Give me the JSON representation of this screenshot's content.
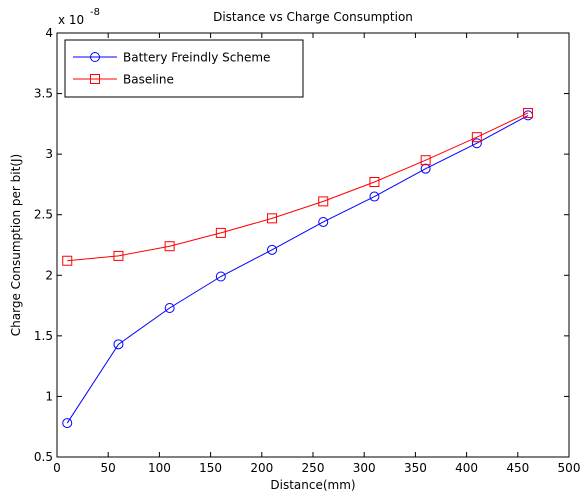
{
  "chart_data": {
    "type": "line",
    "title": "Distance vs Charge Consumption",
    "xlabel": "Distance(mm)",
    "ylabel": "Charge Consumption per bit(J)",
    "y_multiplier_label": "x 10",
    "y_multiplier_exponent": "-8",
    "xlim": [
      0,
      500
    ],
    "ylim": [
      0.5,
      4
    ],
    "x_ticks": [
      "0",
      "50",
      "100",
      "150",
      "200",
      "250",
      "300",
      "350",
      "400",
      "450",
      "500"
    ],
    "y_ticks": [
      "0.5",
      "1",
      "1.5",
      "2",
      "2.5",
      "3",
      "3.5",
      "4"
    ],
    "x_tick_values": [
      0,
      50,
      100,
      150,
      200,
      250,
      300,
      350,
      400,
      450,
      500
    ],
    "y_tick_values": [
      0.5,
      1,
      1.5,
      2,
      2.5,
      3,
      3.5,
      4
    ],
    "grid": false,
    "legend_position": "top-left",
    "x": [
      10,
      60,
      110,
      160,
      210,
      260,
      310,
      360,
      410,
      460
    ],
    "series": [
      {
        "name": "Battery Freindly Scheme",
        "color": "#0000ff",
        "marker": "circle",
        "values": [
          0.78,
          1.43,
          1.73,
          1.99,
          2.21,
          2.44,
          2.65,
          2.88,
          3.09,
          3.32
        ]
      },
      {
        "name": "Baseline",
        "color": "#ff0000",
        "marker": "square",
        "values": [
          2.12,
          2.16,
          2.24,
          2.35,
          2.47,
          2.61,
          2.77,
          2.95,
          3.14,
          3.34
        ]
      }
    ]
  }
}
